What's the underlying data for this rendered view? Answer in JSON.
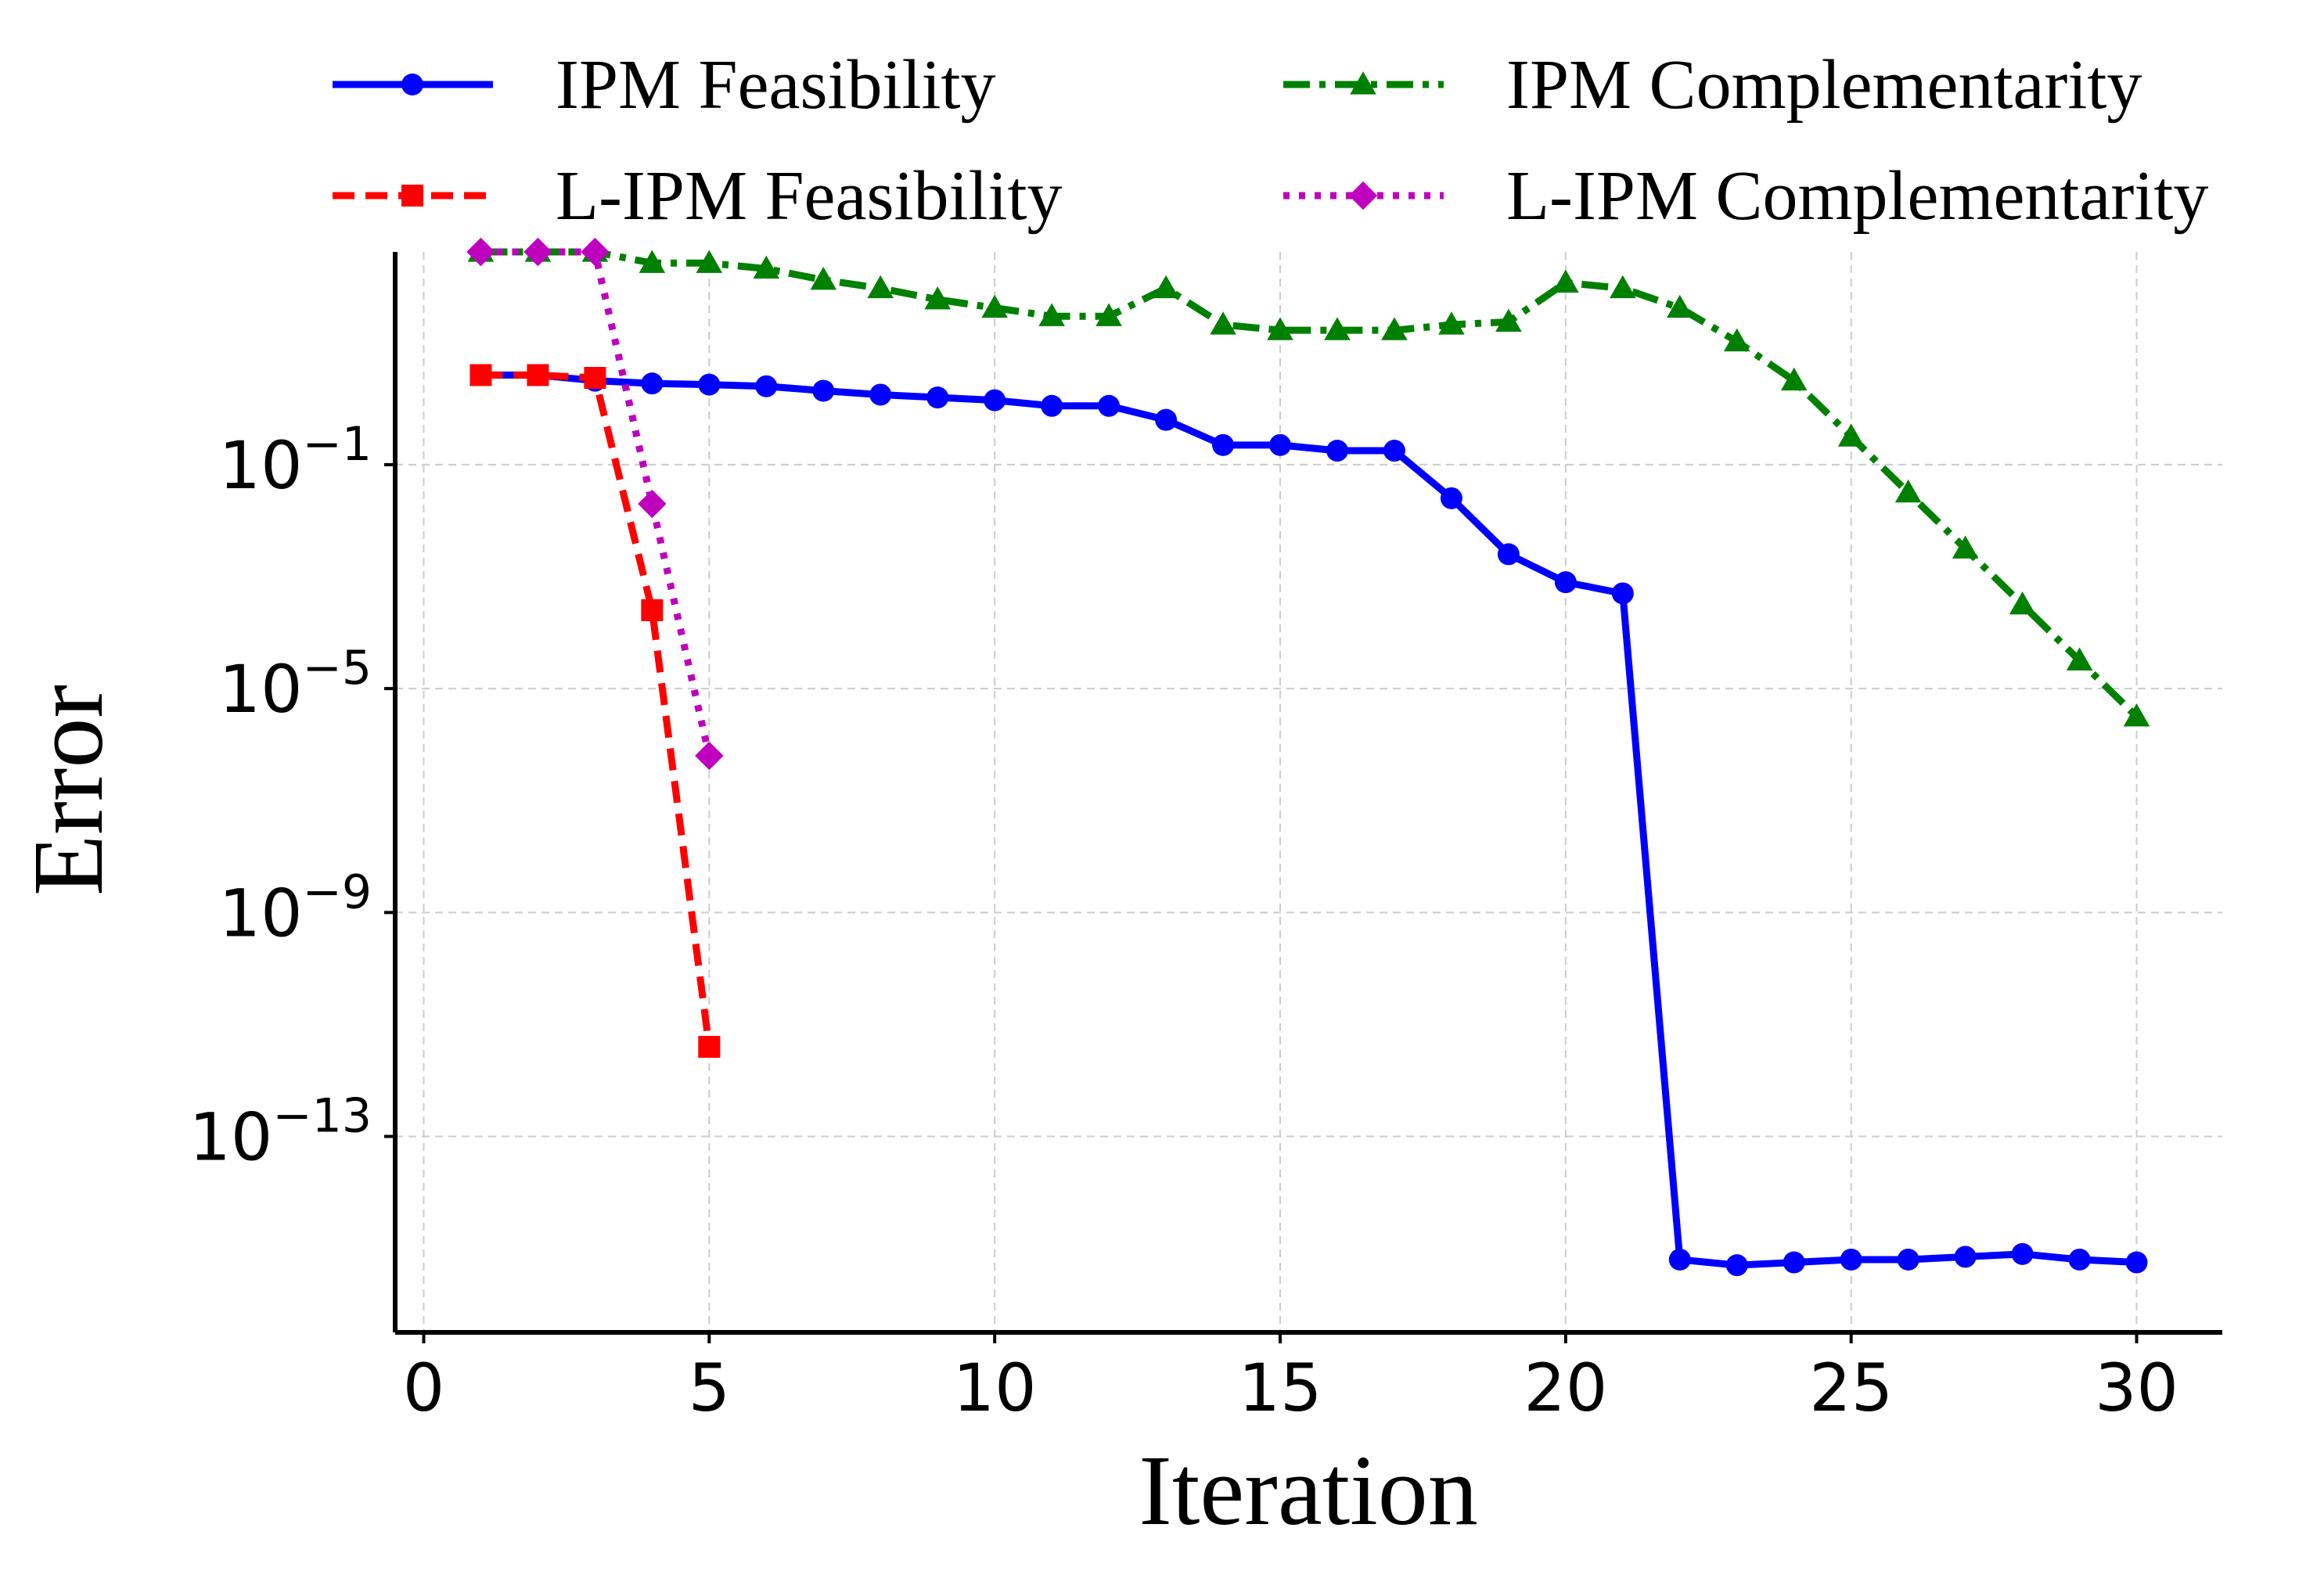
{
  "chart_data": {
    "type": "line",
    "title": "",
    "xlabel": "Iteration",
    "ylabel": "Error",
    "yscale": "log",
    "xlim": [
      -0.5,
      31.5
    ],
    "ylog_lim": [
      -16.5,
      2.8
    ],
    "xticks": [
      0,
      5,
      10,
      15,
      20,
      25,
      30
    ],
    "xtick_labels": [
      "0",
      "5",
      "10",
      "15",
      "20",
      "25",
      "30"
    ],
    "yticks_exp": [
      -1,
      -5,
      -9,
      -13
    ],
    "ytick_bases": [
      "10",
      "10",
      "10",
      "10"
    ],
    "ytick_exps": [
      "−1",
      "−5",
      "−9",
      "−13"
    ],
    "grid": true,
    "legend_position": "top",
    "series": [
      {
        "name": "IPM Feasibility",
        "label": "IPM Feasibility",
        "color": "#0000ff",
        "marker": "circle",
        "dash": "solid",
        "x": [
          1,
          2,
          3,
          4,
          5,
          6,
          7,
          8,
          9,
          10,
          11,
          12,
          13,
          14,
          15,
          16,
          17,
          18,
          19,
          20,
          21,
          22,
          23,
          24,
          25,
          26,
          27,
          28,
          29,
          30
        ],
        "log10_y": [
          0.6,
          0.6,
          0.5,
          0.45,
          0.43,
          0.4,
          0.32,
          0.25,
          0.2,
          0.15,
          0.05,
          0.05,
          -0.2,
          -0.65,
          -0.65,
          -0.75,
          -0.75,
          -1.6,
          -2.6,
          -3.1,
          -3.3,
          -15.2,
          -15.3,
          -15.25,
          -15.2,
          -15.2,
          -15.15,
          -15.1,
          -15.2,
          -15.25
        ]
      },
      {
        "name": "IPM Complementarity",
        "label": "IPM Complementarity",
        "color": "#008000",
        "marker": "triangle",
        "dash": "dashdot",
        "x": [
          1,
          2,
          3,
          4,
          5,
          6,
          7,
          8,
          9,
          10,
          11,
          12,
          13,
          14,
          15,
          16,
          17,
          18,
          19,
          20,
          21,
          22,
          23,
          24,
          25,
          26,
          27,
          28,
          29,
          30
        ],
        "log10_y": [
          2.8,
          2.8,
          2.8,
          2.6,
          2.6,
          2.5,
          2.3,
          2.15,
          1.95,
          1.8,
          1.65,
          1.65,
          2.15,
          1.5,
          1.4,
          1.4,
          1.4,
          1.5,
          1.55,
          2.25,
          2.15,
          1.8,
          1.2,
          0.5,
          -0.5,
          -1.5,
          -2.5,
          -3.5,
          -4.5,
          -5.5
        ]
      },
      {
        "name": "L-IPM Feasibility",
        "label": "L-IPM Feasibility",
        "color": "#ff0000",
        "marker": "square",
        "dash": "dashed",
        "x": [
          1,
          2,
          3,
          4,
          5
        ],
        "log10_y": [
          0.6,
          0.6,
          0.55,
          -3.6,
          -11.4
        ]
      },
      {
        "name": "L-IPM Complementarity",
        "label": "L-IPM Complementarity",
        "color": "#bf00bf",
        "marker": "diamond",
        "dash": "dotted",
        "x": [
          1,
          2,
          3,
          4,
          5
        ],
        "log10_y": [
          2.8,
          2.8,
          2.8,
          -1.7,
          -6.2
        ]
      }
    ]
  }
}
